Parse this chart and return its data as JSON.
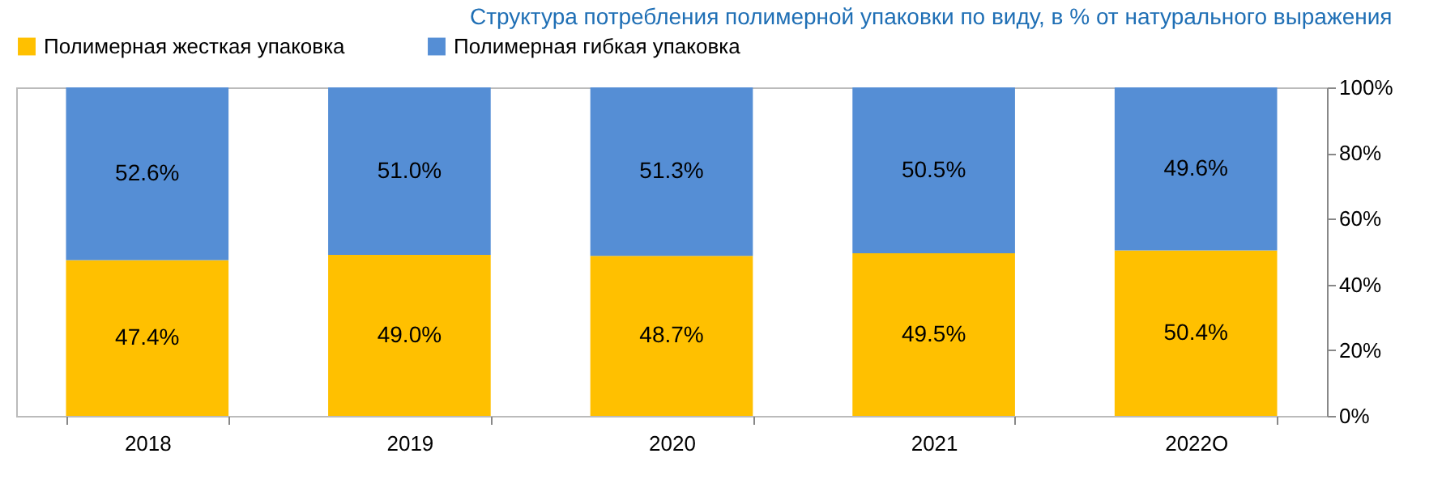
{
  "chart_data": {
    "type": "bar",
    "title": "Структура потребления полимерной упаковки по виду, в % от натурального выражения",
    "stacked": true,
    "categories": [
      "2018",
      "2019",
      "2020",
      "2021",
      "2022О"
    ],
    "series": [
      {
        "name": "Полимерная жесткая упаковка",
        "color": "#ffc000",
        "values": [
          47.4,
          49.0,
          48.7,
          49.5,
          50.4
        ],
        "value_labels": [
          "47.4%",
          "49.0%",
          "48.7%",
          "49.5%",
          "50.4%"
        ]
      },
      {
        "name": "Полимерная гибкая упаковка",
        "color": "#558ed5",
        "values": [
          52.6,
          51.0,
          51.3,
          50.5,
          49.6
        ],
        "value_labels": [
          "52.6%",
          "51.0%",
          "51.3%",
          "50.5%",
          "49.6%"
        ]
      }
    ],
    "ylim": [
      0,
      100
    ],
    "yticks": [
      {
        "value": 0,
        "label": "0%"
      },
      {
        "value": 20,
        "label": "20%"
      },
      {
        "value": 40,
        "label": "40%"
      },
      {
        "value": 60,
        "label": "60%"
      },
      {
        "value": 80,
        "label": "80%"
      },
      {
        "value": 100,
        "label": "100%"
      }
    ],
    "grid": false,
    "legend": "top"
  }
}
